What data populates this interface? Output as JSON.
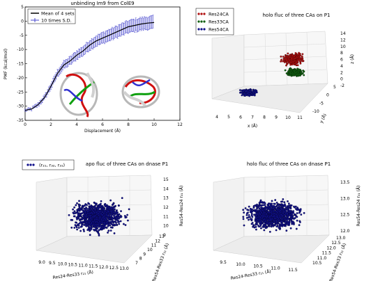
{
  "chart_data": [
    {
      "id": "pmf",
      "type": "line",
      "title": "unbinding Im9 from ColE9",
      "xlabel": "Displacement (Å)",
      "ylabel": "PMF (kcal/mol)",
      "xlim": [
        0,
        12
      ],
      "ylim": [
        -35,
        5
      ],
      "xticks": [
        "0",
        "2",
        "4",
        "6",
        "8",
        "10",
        "12"
      ],
      "yticks": [
        "-35",
        "-30",
        "-25",
        "-20",
        "-15",
        "-10",
        "-5",
        "0",
        "5"
      ],
      "legend": {
        "placement": "top-left",
        "entries": [
          "Mean of 4 sets",
          "10 times S.D."
        ]
      },
      "series": [
        {
          "name": "Mean of 4 sets",
          "color": "#000000",
          "x": [
            0,
            0.5,
            1,
            1.5,
            2,
            2.5,
            3,
            3.5,
            4,
            4.5,
            5,
            5.5,
            6,
            6.5,
            7,
            7.5,
            8,
            8.5,
            9,
            9.5,
            10
          ],
          "y": [
            -31.5,
            -31,
            -29.5,
            -27,
            -23,
            -18.5,
            -15.5,
            -14,
            -12,
            -10.5,
            -8.5,
            -7,
            -6,
            -5,
            -4,
            -3,
            -2,
            -1.5,
            -1,
            -0.7,
            -0.5
          ]
        },
        {
          "name": "10 times S.D.",
          "color": "#4444cc",
          "err": [
            0.3,
            0.4,
            0.6,
            0.8,
            1.0,
            1.2,
            1.3,
            1.4,
            1.5,
            1.6,
            1.7,
            1.8,
            1.9,
            2.0,
            2.0,
            2.1,
            2.1,
            2.2,
            2.2,
            2.2,
            2.3
          ]
        }
      ]
    },
    {
      "id": "holo-p1",
      "type": "scatter",
      "title": "holo fluc of three CAs on P1",
      "xlabel": "x (Å)",
      "ylabel": "y (Å)",
      "zlabel": "z (Å)",
      "xticks": [
        "4",
        "5",
        "6",
        "7",
        "8",
        "9",
        "10",
        "11"
      ],
      "yticks": [
        "-10",
        "-5",
        "0",
        "5"
      ],
      "zticks": [
        "-2",
        "0",
        "2",
        "4",
        "6",
        "8",
        "10",
        "12",
        "14"
      ],
      "legend": {
        "placement": "top-left",
        "entries": [
          "Res24CA",
          "Res33CA",
          "Res54CA"
        ]
      },
      "series": [
        {
          "name": "Res24CA",
          "color": "#b01010"
        },
        {
          "name": "Res33CA",
          "color": "#106010"
        },
        {
          "name": "Res54CA",
          "color": "#10108a"
        }
      ]
    },
    {
      "id": "apo-dnase",
      "type": "scatter",
      "title": "apo fluc of three CAs on dnase P1",
      "xlabel": "Res24-Res33 r₂₁ (Å)",
      "ylabel": "Res54-Res33 r₃₂ (Å)",
      "zlabel": "Res54-Res24 r₃₁ (Å)",
      "xticks": [
        "9.0",
        "9.5",
        "10.0",
        "10.5",
        "11.0",
        "11.5",
        "12.0",
        "12.5",
        "13.0"
      ],
      "yticks": [
        "7",
        "8",
        "9",
        "10",
        "11",
        "12",
        "13"
      ],
      "zticks": [
        "9",
        "10",
        "11",
        "12",
        "13",
        "14",
        "15"
      ],
      "legend": {
        "placement": "top-left",
        "entries": [
          "(r₂₁, r₃₂, r₃₁)"
        ]
      },
      "series": [
        {
          "name": "(r₂₁, r₃₂, r₃₁)",
          "color": "#10108a"
        }
      ]
    },
    {
      "id": "holo-dnase",
      "type": "scatter",
      "title": "holo fluc of three CAs on dnase P1",
      "xlabel": "Res24-Res33 r₂₁ (Å)",
      "ylabel": "Res54-Res33 r₃₂ (Å)",
      "zlabel": "Res54-Res24 r₃₁ (Å)",
      "xticks": [
        "9.5",
        "10.0",
        "10.5",
        "11.0",
        "11.5"
      ],
      "yticks": [
        "10.5",
        "11.0",
        "11.5",
        "12.0",
        "12.5",
        "13.0"
      ],
      "zticks": [
        "12.0",
        "12.5",
        "13.0",
        "13.5"
      ],
      "series": [
        {
          "name": "",
          "color": "#10108a"
        }
      ]
    }
  ]
}
